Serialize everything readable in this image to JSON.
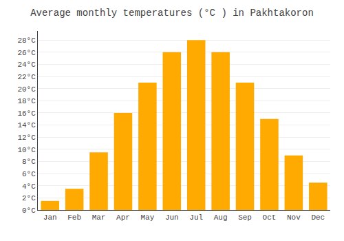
{
  "chart_data": {
    "type": "bar",
    "title": "Average monthly temperatures (°C ) in Pakhtakoron",
    "categories": [
      "Jan",
      "Feb",
      "Mar",
      "Apr",
      "May",
      "Jun",
      "Jul",
      "Aug",
      "Sep",
      "Oct",
      "Nov",
      "Dec"
    ],
    "values": [
      1.5,
      3.5,
      9.5,
      16.0,
      21.0,
      26.0,
      28.0,
      26.0,
      21.0,
      15.0,
      9.0,
      4.5
    ],
    "color": "#FFAA00",
    "ylim": [
      0,
      29.5
    ],
    "yticks": [
      {
        "value": 0,
        "label": "0°C"
      },
      {
        "value": 2,
        "label": "2°C"
      },
      {
        "value": 4,
        "label": "4°C"
      },
      {
        "value": 6,
        "label": "6°C"
      },
      {
        "value": 8,
        "label": "8°C"
      },
      {
        "value": 10,
        "label": "10°C"
      },
      {
        "value": 12,
        "label": "12°C"
      },
      {
        "value": 14,
        "label": "14°C"
      },
      {
        "value": 16,
        "label": "16°C"
      },
      {
        "value": 18,
        "label": "18°C"
      },
      {
        "value": 20,
        "label": "20°C"
      },
      {
        "value": 22,
        "label": "22°C"
      },
      {
        "value": 24,
        "label": "24°C"
      },
      {
        "value": 26,
        "label": "26°C"
      },
      {
        "value": 28,
        "label": "28°C"
      }
    ],
    "grid": true
  }
}
